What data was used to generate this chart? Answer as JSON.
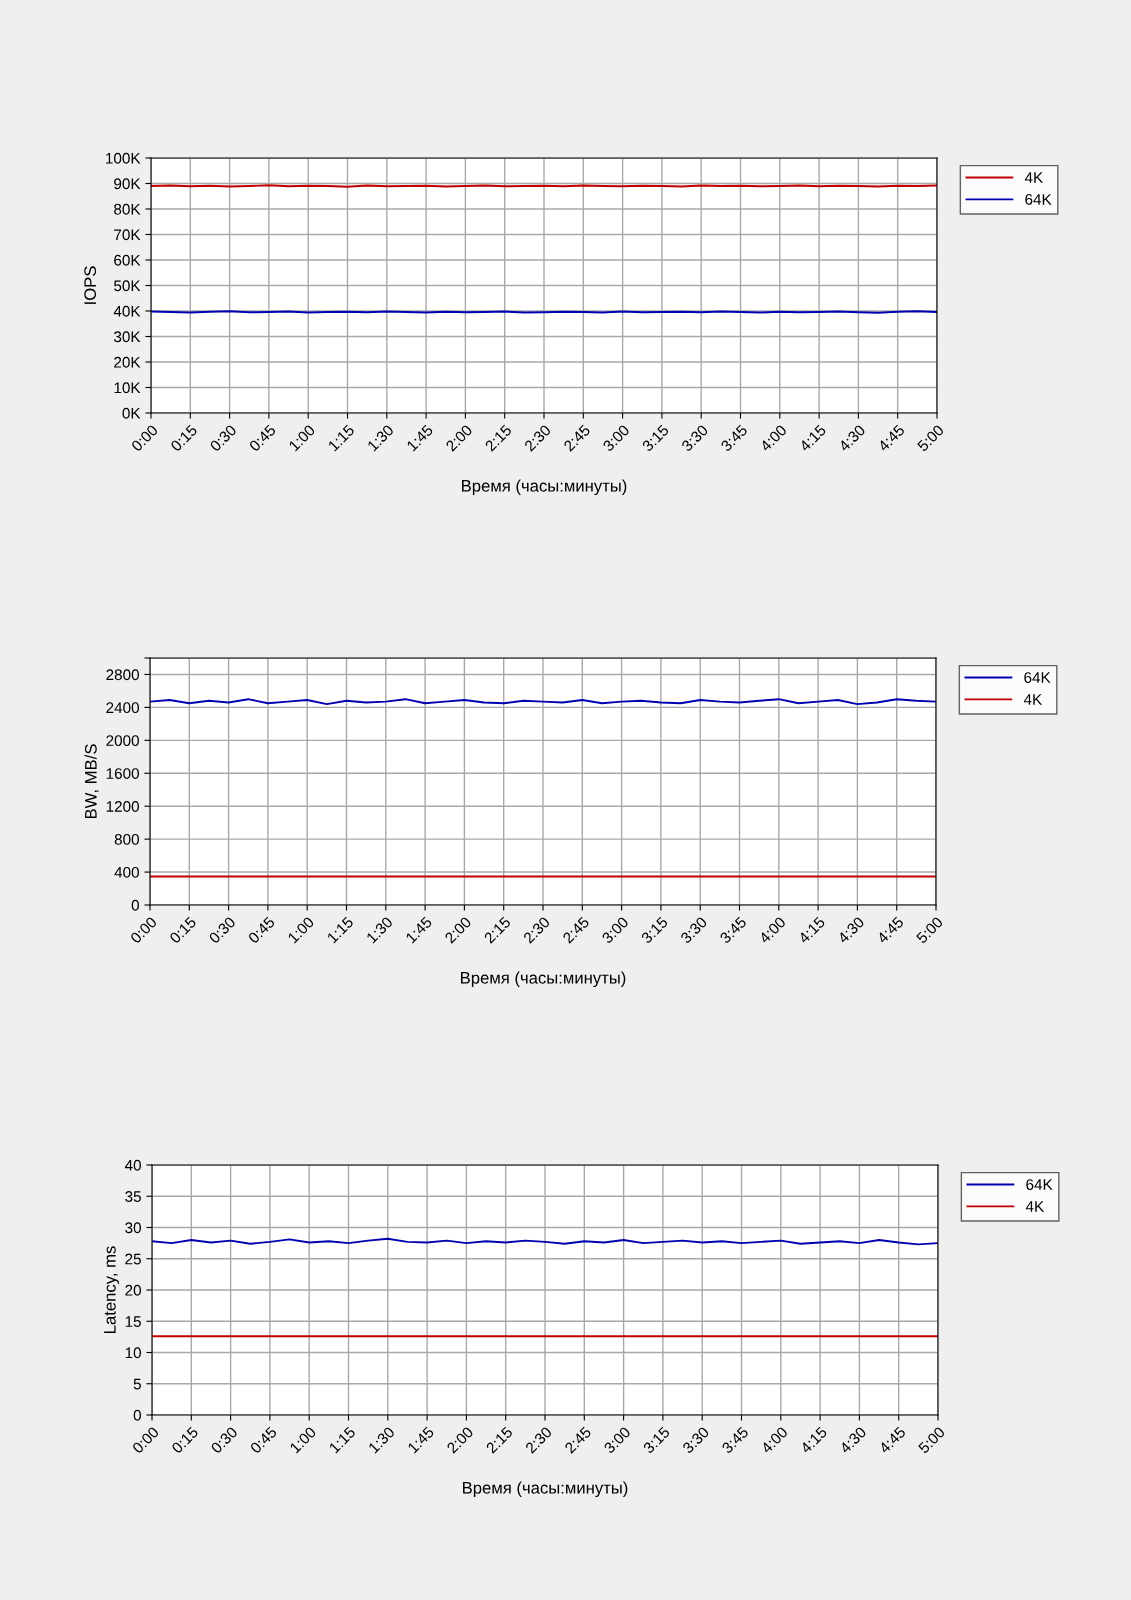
{
  "chart_data": [
    {
      "type": "line",
      "ylabel": "IOPS",
      "xlabel": "Время (часы:минуты)",
      "xlim": [
        0,
        5
      ],
      "ylim": [
        0,
        100000
      ],
      "grid": true,
      "legend": "top right",
      "xticks": [
        {
          "value": 0,
          "label": "0:00"
        },
        {
          "value": 0.25,
          "label": "0:15"
        },
        {
          "value": 0.5,
          "label": "0:30"
        },
        {
          "value": 0.75,
          "label": "0:45"
        },
        {
          "value": 1,
          "label": "1:00"
        },
        {
          "value": 1.25,
          "label": "1:15"
        },
        {
          "value": 1.5,
          "label": "1:30"
        },
        {
          "value": 1.75,
          "label": "1:45"
        },
        {
          "value": 2,
          "label": "2:00"
        },
        {
          "value": 2.25,
          "label": "2:15"
        },
        {
          "value": 2.5,
          "label": "2:30"
        },
        {
          "value": 2.75,
          "label": "2:45"
        },
        {
          "value": 3,
          "label": "3:00"
        },
        {
          "value": 3.25,
          "label": "3:15"
        },
        {
          "value": 3.5,
          "label": "3:30"
        },
        {
          "value": 3.75,
          "label": "3:45"
        },
        {
          "value": 4,
          "label": "4:00"
        },
        {
          "value": 4.25,
          "label": "4:15"
        },
        {
          "value": 4.5,
          "label": "4:30"
        },
        {
          "value": 4.75,
          "label": "4:45"
        },
        {
          "value": 5,
          "label": "5:00"
        }
      ],
      "yticks": [
        {
          "value": 0,
          "label": "0K"
        },
        {
          "value": 10000,
          "label": "10K"
        },
        {
          "value": 20000,
          "label": "20K"
        },
        {
          "value": 30000,
          "label": "30K"
        },
        {
          "value": 40000,
          "label": "40K"
        },
        {
          "value": 50000,
          "label": "50K"
        },
        {
          "value": 60000,
          "label": "60K"
        },
        {
          "value": 70000,
          "label": "70K"
        },
        {
          "value": 80000,
          "label": "80K"
        },
        {
          "value": 90000,
          "label": "90K"
        },
        {
          "value": 100000,
          "label": "100K"
        }
      ],
      "x": [
        0,
        0.125,
        0.25,
        0.375,
        0.5,
        0.625,
        0.75,
        0.875,
        1,
        1.125,
        1.25,
        1.375,
        1.5,
        1.625,
        1.75,
        1.875,
        2,
        2.125,
        2.25,
        2.375,
        2.5,
        2.625,
        2.75,
        2.875,
        3,
        3.125,
        3.25,
        3.375,
        3.5,
        3.625,
        3.75,
        3.875,
        4,
        4.125,
        4.25,
        4.375,
        4.5,
        4.625,
        4.75,
        4.875,
        5
      ],
      "series": [
        {
          "name": "4K",
          "color": "#c00000",
          "values": [
            89000,
            89200,
            88900,
            89100,
            88800,
            89000,
            89300,
            88900,
            89100,
            89000,
            88700,
            89200,
            88900,
            89000,
            89100,
            88800,
            89000,
            89200,
            88900,
            89000,
            89100,
            88900,
            89200,
            89000,
            88900,
            89100,
            89000,
            88800,
            89200,
            89000,
            89100,
            88900,
            89000,
            89200,
            88900,
            89100,
            89000,
            88800,
            89100,
            89000,
            89200
          ]
        },
        {
          "name": "64K",
          "color": "#0000b0",
          "values": [
            39800,
            39600,
            39400,
            39700,
            39900,
            39500,
            39600,
            39800,
            39400,
            39600,
            39700,
            39500,
            39800,
            39600,
            39400,
            39700,
            39500,
            39600,
            39800,
            39400,
            39500,
            39700,
            39600,
            39400,
            39800,
            39500,
            39600,
            39700,
            39500,
            39800,
            39600,
            39400,
            39700,
            39500,
            39600,
            39800,
            39500,
            39300,
            39700,
            39900,
            39600
          ]
        }
      ]
    },
    {
      "type": "line",
      "ylabel": "BW, MB/S",
      "xlabel": "Время (часы:минуты)",
      "xlim": [
        0,
        5
      ],
      "ylim": [
        0,
        3000
      ],
      "grid": true,
      "legend": "top right",
      "xticks": [
        {
          "value": 0,
          "label": "0:00"
        },
        {
          "value": 0.25,
          "label": "0:15"
        },
        {
          "value": 0.5,
          "label": "0:30"
        },
        {
          "value": 0.75,
          "label": "0:45"
        },
        {
          "value": 1,
          "label": "1:00"
        },
        {
          "value": 1.25,
          "label": "1:15"
        },
        {
          "value": 1.5,
          "label": "1:30"
        },
        {
          "value": 1.75,
          "label": "1:45"
        },
        {
          "value": 2,
          "label": "2:00"
        },
        {
          "value": 2.25,
          "label": "2:15"
        },
        {
          "value": 2.5,
          "label": "2:30"
        },
        {
          "value": 2.75,
          "label": "2:45"
        },
        {
          "value": 3,
          "label": "3:00"
        },
        {
          "value": 3.25,
          "label": "3:15"
        },
        {
          "value": 3.5,
          "label": "3:30"
        },
        {
          "value": 3.75,
          "label": "3:45"
        },
        {
          "value": 4,
          "label": "4:00"
        },
        {
          "value": 4.25,
          "label": "4:15"
        },
        {
          "value": 4.5,
          "label": "4:30"
        },
        {
          "value": 4.75,
          "label": "4:45"
        },
        {
          "value": 5,
          "label": "5:00"
        }
      ],
      "yticks": [
        0,
        400,
        800,
        1200,
        1600,
        2000,
        2400,
        2800,
        {
          "value": 3000,
          "label": null
        }
      ],
      "x": [
        0,
        0.125,
        0.25,
        0.375,
        0.5,
        0.625,
        0.75,
        0.875,
        1,
        1.125,
        1.25,
        1.375,
        1.5,
        1.625,
        1.75,
        1.875,
        2,
        2.125,
        2.25,
        2.375,
        2.5,
        2.625,
        2.75,
        2.875,
        3,
        3.125,
        3.25,
        3.375,
        3.5,
        3.625,
        3.75,
        3.875,
        4,
        4.125,
        4.25,
        4.375,
        4.5,
        4.625,
        4.75,
        4.875,
        5
      ],
      "series": [
        {
          "name": "64K",
          "color": "#0000b0",
          "values": [
            2470,
            2490,
            2450,
            2480,
            2460,
            2500,
            2450,
            2470,
            2490,
            2440,
            2480,
            2460,
            2470,
            2500,
            2450,
            2470,
            2490,
            2460,
            2450,
            2480,
            2470,
            2460,
            2490,
            2450,
            2470,
            2480,
            2460,
            2450,
            2490,
            2470,
            2460,
            2480,
            2500,
            2450,
            2470,
            2490,
            2440,
            2460,
            2500,
            2480,
            2470
          ]
        },
        {
          "name": "4K",
          "color": "#c00000",
          "values": [
            345,
            345,
            345,
            345,
            345,
            345,
            345,
            345,
            345,
            345,
            345,
            345,
            345,
            345,
            345,
            345,
            345,
            345,
            345,
            345,
            345,
            345,
            345,
            345,
            345,
            345,
            345,
            345,
            345,
            345,
            345,
            345,
            345,
            345,
            345,
            345,
            345,
            345,
            345,
            345,
            345
          ]
        }
      ]
    },
    {
      "type": "line",
      "ylabel": "Latency, ms",
      "xlabel": "Время (часы:минуты)",
      "xlim": [
        0,
        5
      ],
      "ylim": [
        0,
        40
      ],
      "grid": true,
      "legend": "top right",
      "xticks": [
        {
          "value": 0,
          "label": "0:00"
        },
        {
          "value": 0.25,
          "label": "0:15"
        },
        {
          "value": 0.5,
          "label": "0:30"
        },
        {
          "value": 0.75,
          "label": "0:45"
        },
        {
          "value": 1,
          "label": "1:00"
        },
        {
          "value": 1.25,
          "label": "1:15"
        },
        {
          "value": 1.5,
          "label": "1:30"
        },
        {
          "value": 1.75,
          "label": "1:45"
        },
        {
          "value": 2,
          "label": "2:00"
        },
        {
          "value": 2.25,
          "label": "2:15"
        },
        {
          "value": 2.5,
          "label": "2:30"
        },
        {
          "value": 2.75,
          "label": "2:45"
        },
        {
          "value": 3,
          "label": "3:00"
        },
        {
          "value": 3.25,
          "label": "3:15"
        },
        {
          "value": 3.5,
          "label": "3:30"
        },
        {
          "value": 3.75,
          "label": "3:45"
        },
        {
          "value": 4,
          "label": "4:00"
        },
        {
          "value": 4.25,
          "label": "4:15"
        },
        {
          "value": 4.5,
          "label": "4:30"
        },
        {
          "value": 4.75,
          "label": "4:45"
        },
        {
          "value": 5,
          "label": "5:00"
        }
      ],
      "yticks": [
        0,
        5,
        10,
        15,
        20,
        25,
        30,
        35,
        40
      ],
      "x": [
        0,
        0.125,
        0.25,
        0.375,
        0.5,
        0.625,
        0.75,
        0.875,
        1,
        1.125,
        1.25,
        1.375,
        1.5,
        1.625,
        1.75,
        1.875,
        2,
        2.125,
        2.25,
        2.375,
        2.5,
        2.625,
        2.75,
        2.875,
        3,
        3.125,
        3.25,
        3.375,
        3.5,
        3.625,
        3.75,
        3.875,
        4,
        4.125,
        4.25,
        4.375,
        4.5,
        4.625,
        4.75,
        4.875,
        5
      ],
      "series": [
        {
          "name": "64K",
          "color": "#0000b0",
          "values": [
            27.8,
            27.5,
            28.0,
            27.6,
            27.9,
            27.4,
            27.7,
            28.1,
            27.6,
            27.8,
            27.5,
            27.9,
            28.2,
            27.7,
            27.6,
            27.9,
            27.5,
            27.8,
            27.6,
            27.9,
            27.7,
            27.4,
            27.8,
            27.6,
            28.0,
            27.5,
            27.7,
            27.9,
            27.6,
            27.8,
            27.5,
            27.7,
            27.9,
            27.4,
            27.6,
            27.8,
            27.5,
            28.0,
            27.6,
            27.3,
            27.5
          ]
        },
        {
          "name": "4K",
          "color": "#c00000",
          "values": [
            12.6,
            12.6,
            12.6,
            12.6,
            12.6,
            12.6,
            12.6,
            12.6,
            12.6,
            12.6,
            12.6,
            12.6,
            12.6,
            12.6,
            12.6,
            12.6,
            12.6,
            12.6,
            12.6,
            12.6,
            12.6,
            12.6,
            12.6,
            12.6,
            12.6,
            12.6,
            12.6,
            12.6,
            12.6,
            12.6,
            12.6,
            12.6,
            12.6,
            12.6,
            12.6,
            12.6,
            12.6,
            12.6,
            12.6,
            12.6,
            12.6
          ]
        }
      ]
    }
  ]
}
